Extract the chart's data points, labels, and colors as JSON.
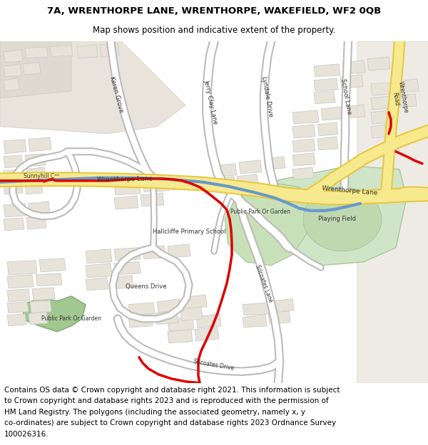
{
  "title_line1": "7A, WRENTHORPE LANE, WRENTHORPE, WAKEFIELD, WF2 0QB",
  "title_line2": "Map shows position and indicative extent of the property.",
  "footer_text": "Contains OS data © Crown copyright and database right 2021. This information is subject to Crown copyright and database rights 2023 and is reproduced with the permission of HM Land Registry. The polygons (including the associated geometry, namely x, y co-ordinates) are subject to Crown copyright and database rights 2023 Ordnance Survey 100026316.",
  "title_fontsize": 9.5,
  "footer_fontsize": 7.5,
  "map_bg": "#f5f3ef",
  "road_yellow_fill": "#f7e98e",
  "road_yellow_outline": "#e8c840",
  "road_white_fill": "#ffffff",
  "road_gray_outline": "#bbbbbb",
  "building_fill": "#e8e3d8",
  "building_edge": "#cccccc",
  "park_green": "#b8d4a8",
  "park_dark": "#90b880",
  "red_line": "#dd0000",
  "blue_line": "#6699cc",
  "text_dark": "#444444",
  "fig_width": 6.0,
  "fig_height": 6.25,
  "dpi": 100
}
